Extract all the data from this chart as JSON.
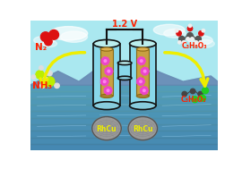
{
  "title": "1.2 V",
  "title_color": "#ff2200",
  "bg_sky": "#aae8f0",
  "bg_water_top": "#4a9acc",
  "bg_water_bottom": "#2060a0",
  "bg_mountain": "#5577aa",
  "label_N2": "N₂",
  "label_NH3": "NH₃",
  "label_C3H8O3": "C₃H₈O₃",
  "label_C3H6O3": "C₃H₆O₃",
  "label_RhCu": "RhCu",
  "label_color_red": "#ff2200",
  "arrow_color": "#eeee00",
  "electrode_color": "#c8a040",
  "cell_color": "#88d8ea",
  "wire_color": "#111111",
  "nanoflake_color": "#ee44cc",
  "coin_color_light": "#cccccc",
  "coin_color_dark": "#888888"
}
